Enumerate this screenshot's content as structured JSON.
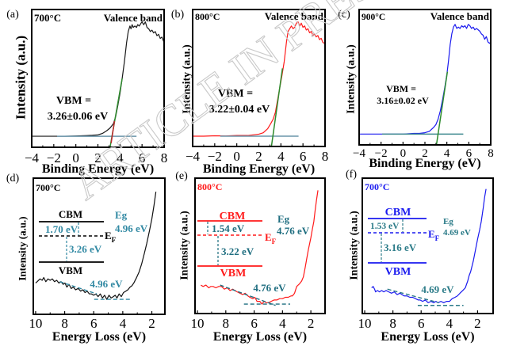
{
  "figure": {
    "watermark": "ARTICLE IN PRESS"
  },
  "chart_data": [
    {
      "panel_label": "(a)",
      "type": "line",
      "sample_label": "700°C",
      "sample_color": "#000000",
      "title": "Valence band",
      "xlabel": "Binding Energy (eV)",
      "ylabel": "Intensity (a.u.)",
      "xlim": [
        -4,
        8
      ],
      "ylim": [
        0,
        1
      ],
      "xticks": [
        -4,
        -2,
        0,
        2,
        4,
        6,
        8
      ],
      "xtick_labels": [
        "−4",
        "−2",
        "0",
        "2",
        "4",
        "6",
        "8"
      ],
      "series": [
        {
          "name": "Valence band spectrum 700°C",
          "color": "#1a1a1a",
          "x": [
            -4,
            -3,
            -2,
            -1,
            0,
            1,
            1.5,
            2,
            2.4,
            2.8,
            3.1,
            3.4,
            3.6,
            3.8,
            4.0,
            4.2,
            4.4,
            4.6,
            4.75,
            4.9,
            5.0,
            5.1,
            5.2,
            5.35,
            5.5,
            5.6,
            5.75,
            5.9,
            6.0,
            6.15,
            6.3,
            6.45,
            6.6,
            6.75,
            6.9,
            7.05,
            7.2,
            7.35,
            7.5,
            7.65,
            7.8,
            8.0
          ],
          "y": [
            0.08,
            0.08,
            0.08,
            0.08,
            0.082,
            0.085,
            0.087,
            0.09,
            0.1,
            0.12,
            0.14,
            0.17,
            0.22,
            0.3,
            0.39,
            0.5,
            0.62,
            0.76,
            0.84,
            0.88,
            0.86,
            0.89,
            0.87,
            0.88,
            0.87,
            0.89,
            0.88,
            0.9,
            0.91,
            0.89,
            0.91,
            0.87,
            0.86,
            0.84,
            0.85,
            0.83,
            0.84,
            0.81,
            0.82,
            0.79,
            0.8,
            0.76
          ]
        }
      ],
      "fit_lines": [
        {
          "name": "background",
          "color": "#6a95aa",
          "x": [
            -1.7,
            5.5
          ],
          "y": [
            0.08,
            0.08
          ]
        },
        {
          "name": "leading-edge",
          "color": "#2e8b2e",
          "x": [
            3.1,
            4.2
          ],
          "y": [
            0.0,
            0.5
          ]
        },
        {
          "name": "edge-foot",
          "color": "#c0282c",
          "x": [
            3.2,
            3.5
          ],
          "y": [
            0.03,
            0.19
          ]
        }
      ],
      "annotation": [
        "VBM =",
        "3.26±0.06 eV"
      ],
      "vbm_eV": 3.26,
      "vbm_error_eV": 0.06
    },
    {
      "panel_label": "(b)",
      "type": "line",
      "sample_label": "800°C",
      "sample_color": "#000000",
      "title": "Valence band",
      "xlabel": "Binding Energy (eV)",
      "ylabel": "Intensity (a.u.)",
      "xlim": [
        -4,
        8
      ],
      "ylim": [
        0,
        1
      ],
      "xticks": [
        -4,
        -2,
        0,
        2,
        4,
        6,
        8
      ],
      "xtick_labels": [
        "−4",
        "−2",
        "0",
        "2",
        "4",
        "6",
        "8"
      ],
      "series": [
        {
          "name": "Valence band spectrum 800°C",
          "color": "#ff1a1a",
          "x": [
            -4,
            -3,
            -2,
            -1,
            0,
            1,
            1.5,
            2,
            2.4,
            2.8,
            3.1,
            3.3,
            3.5,
            3.7,
            3.9,
            4.1,
            4.3,
            4.5,
            4.65,
            4.8,
            4.95,
            5.1,
            5.25,
            5.4,
            5.55,
            5.7,
            5.85,
            6.0,
            6.15,
            6.3,
            6.45,
            6.6,
            6.75,
            6.9,
            7.05,
            7.2,
            7.35,
            7.5,
            7.65,
            7.8,
            8.0
          ],
          "y": [
            0.075,
            0.075,
            0.078,
            0.077,
            0.08,
            0.08,
            0.085,
            0.09,
            0.1,
            0.13,
            0.17,
            0.2,
            0.25,
            0.34,
            0.43,
            0.52,
            0.62,
            0.76,
            0.84,
            0.86,
            0.88,
            0.86,
            0.87,
            0.9,
            0.91,
            0.88,
            0.9,
            0.87,
            0.88,
            0.85,
            0.86,
            0.83,
            0.84,
            0.81,
            0.82,
            0.8,
            0.81,
            0.78,
            0.79,
            0.76,
            0.75
          ]
        }
      ],
      "fit_lines": [
        {
          "name": "background",
          "color": "#6a95aa",
          "x": [
            -1.5,
            5.6
          ],
          "y": [
            0.075,
            0.075
          ]
        },
        {
          "name": "leading-edge",
          "color": "#2e8b2e",
          "x": [
            3.14,
            4.14
          ],
          "y": [
            0.0,
            0.57
          ]
        }
      ],
      "annotation": [
        "VBM =",
        "3.22±0.04 eV"
      ],
      "vbm_eV": 3.22,
      "vbm_error_eV": 0.04
    },
    {
      "panel_label": "(c)",
      "type": "line",
      "sample_label": "900°C",
      "sample_color": "#000000",
      "title": "Valence band",
      "xlabel": "Binding Energy (eV)",
      "ylabel": "Intensity (a.u.)",
      "xlim": [
        -4,
        8
      ],
      "ylim": [
        0,
        1
      ],
      "xticks": [
        -4,
        -2,
        0,
        2,
        4,
        6,
        8
      ],
      "xtick_labels": [
        "−4",
        "−2",
        "0",
        "2",
        "4",
        "6",
        "8"
      ],
      "series": [
        {
          "name": "Valence band spectrum 900°C",
          "color": "#1a1aef",
          "x": [
            -4,
            -3,
            -2,
            -1,
            0,
            1,
            1.5,
            2,
            2.4,
            2.8,
            3.0,
            3.2,
            3.4,
            3.6,
            3.8,
            4.0,
            4.15,
            4.3,
            4.45,
            4.6,
            4.75,
            4.9,
            5.05,
            5.2,
            5.35,
            5.5,
            5.65,
            5.8,
            5.95,
            6.1,
            6.25,
            6.4,
            6.55,
            6.7,
            6.85,
            7.0,
            7.15,
            7.3,
            7.45,
            7.6,
            7.75,
            7.9,
            8.0
          ],
          "y": [
            0.08,
            0.08,
            0.08,
            0.08,
            0.08,
            0.085,
            0.085,
            0.09,
            0.1,
            0.13,
            0.15,
            0.19,
            0.25,
            0.33,
            0.42,
            0.52,
            0.62,
            0.74,
            0.82,
            0.87,
            0.89,
            0.86,
            0.87,
            0.86,
            0.88,
            0.87,
            0.88,
            0.86,
            0.89,
            0.88,
            0.86,
            0.87,
            0.85,
            0.86,
            0.85,
            0.84,
            0.82,
            0.81,
            0.78,
            0.8,
            0.76,
            0.75,
            0.76
          ]
        }
      ],
      "fit_lines": [
        {
          "name": "background",
          "color": "#3f8a8f",
          "x": [
            -1.9,
            5.5
          ],
          "y": [
            0.08,
            0.08
          ]
        },
        {
          "name": "leading-edge",
          "color": "#2e8b2e",
          "x": [
            3.05,
            4.05
          ],
          "y": [
            0.0,
            0.54
          ]
        }
      ],
      "annotation": [
        "VBM =",
        "3.16±0.02 eV"
      ],
      "vbm_eV": 3.16,
      "vbm_error_eV": 0.02
    },
    {
      "panel_label": "(d)",
      "type": "line",
      "sample_label": "700°C",
      "sample_color": "#000000",
      "xlabel": "Energy Loss (eV)",
      "ylabel": "Intensity (a.u.)",
      "xlim": [
        10.16,
        1.1
      ],
      "ylim": [
        0,
        1
      ],
      "xticks": [
        10,
        8,
        6,
        4,
        2
      ],
      "xtick_labels": [
        "10",
        "8",
        "6",
        "4",
        "2"
      ],
      "series": [
        {
          "name": "REELS spectrum 700°C",
          "color": "#111111",
          "x": [
            10.0,
            9.89,
            9.7,
            9.55,
            9.44,
            9.3,
            9.15,
            9.0,
            8.85,
            8.7,
            8.55,
            8.4,
            8.25,
            8.1,
            7.98,
            7.85,
            7.7,
            7.55,
            7.4,
            7.25,
            7.07,
            6.9,
            6.75,
            6.6,
            6.45,
            6.3,
            6.16,
            6.0,
            5.85,
            5.7,
            5.55,
            5.4,
            5.25,
            5.1,
            4.95,
            4.8,
            4.65,
            4.52,
            4.4,
            4.25,
            4.1,
            3.95,
            3.79,
            3.65,
            3.5,
            3.37,
            3.24,
            3.05,
            2.88,
            2.7,
            2.51,
            2.35,
            2.15,
            2.0,
            1.85,
            1.72
          ],
          "y": [
            0.23,
            0.24,
            0.26,
            0.25,
            0.27,
            0.24,
            0.26,
            0.25,
            0.26,
            0.24,
            0.25,
            0.23,
            0.24,
            0.22,
            0.23,
            0.2,
            0.22,
            0.19,
            0.2,
            0.18,
            0.19,
            0.17,
            0.18,
            0.16,
            0.17,
            0.15,
            0.15,
            0.14,
            0.15,
            0.13,
            0.15,
            0.12,
            0.14,
            0.11,
            0.14,
            0.12,
            0.13,
            0.14,
            0.12,
            0.15,
            0.13,
            0.16,
            0.17,
            0.18,
            0.2,
            0.21,
            0.23,
            0.27,
            0.31,
            0.37,
            0.45,
            0.52,
            0.62,
            0.7,
            0.8,
            0.9
          ]
        }
      ],
      "fit_lines": [
        {
          "name": "onset-fit",
          "color": "#3189a3",
          "x": [
            8.34,
            5.79
          ],
          "y": [
            0.24,
            0.15
          ]
        },
        {
          "name": "background-fit",
          "color": "#3189a3",
          "x": [
            5.97,
            3.51
          ],
          "y": [
            0.11,
            0.11
          ]
        }
      ],
      "annotation": [
        "4.96 eV"
      ],
      "bandgap_eV": 4.96,
      "band_diagram": {
        "level_color": "#000000",
        "text_color": "#3189a3",
        "cbm_label": "CBM",
        "vbm_label": "VBM",
        "fermi_main": "E",
        "fermi_sub": "F",
        "cbm_to_ef": "1.70 eV",
        "ef_to_vbm": "3.26 eV",
        "eg_label": "Eg",
        "eg_value": "4.96 eV"
      }
    },
    {
      "panel_label": "(e)",
      "type": "line",
      "sample_label": "800°C",
      "sample_color": "#ff1a1a",
      "xlabel": "Energy Loss (eV)",
      "ylabel": "Intensity (a.u.)",
      "xlim": [
        10.17,
        1.0
      ],
      "ylim": [
        0,
        1
      ],
      "xticks": [
        10,
        8,
        6,
        4,
        2
      ],
      "xtick_labels": [
        "10",
        "8",
        "6",
        "4",
        "2"
      ],
      "series": [
        {
          "name": "REELS spectrum 800°C",
          "color": "#ff1a1a",
          "x": [
            9.76,
            9.6,
            9.4,
            9.2,
            9.05,
            8.9,
            8.7,
            8.5,
            8.3,
            8.1,
            7.9,
            7.7,
            7.5,
            7.37,
            7.2,
            7.0,
            6.8,
            6.64,
            6.44,
            6.3,
            6.1,
            5.95,
            5.8,
            5.6,
            5.45,
            5.3,
            5.15,
            4.97,
            4.8,
            4.6,
            4.4,
            4.2,
            4.0,
            3.8,
            3.6,
            3.4,
            3.3,
            3.15,
            3.0,
            2.8,
            2.65,
            2.53,
            2.4,
            2.3,
            2.18,
            2.0,
            1.9,
            1.79,
            1.7,
            1.6,
            1.5
          ],
          "y": [
            0.21,
            0.2,
            0.21,
            0.19,
            0.2,
            0.2,
            0.19,
            0.2,
            0.2,
            0.18,
            0.19,
            0.17,
            0.18,
            0.17,
            0.16,
            0.15,
            0.14,
            0.15,
            0.13,
            0.12,
            0.11,
            0.12,
            0.09,
            0.09,
            0.07,
            0.09,
            0.08,
            0.08,
            0.09,
            0.1,
            0.1,
            0.11,
            0.11,
            0.12,
            0.12,
            0.13,
            0.13,
            0.15,
            0.2,
            0.22,
            0.24,
            0.27,
            0.34,
            0.4,
            0.47,
            0.56,
            0.62,
            0.68,
            0.76,
            0.84,
            0.91
          ]
        }
      ],
      "fit_lines": [
        {
          "name": "onset-fit",
          "color": "#1f6e80",
          "x": [
            8.4,
            4.49
          ],
          "y": [
            0.21,
            0.06
          ]
        },
        {
          "name": "background-fit",
          "color": "#1f6e80",
          "x": [
            6.72,
            3.46
          ],
          "y": [
            0.07,
            0.07
          ]
        }
      ],
      "annotation": [
        "4.76 eV"
      ],
      "bandgap_eV": 4.76,
      "band_diagram": {
        "level_color": "#ff1a1a",
        "text_color": "#1f6e80",
        "cbm_label": "CBM",
        "vbm_label": "VBM",
        "fermi_main": "E",
        "fermi_sub": "F",
        "cbm_to_ef": "1.54 eV",
        "ef_to_vbm": "3.22 eV",
        "eg_label": "Eg",
        "eg_value": "4.76 eV"
      }
    },
    {
      "panel_label": "(f)",
      "type": "line",
      "sample_label": "700°C",
      "sample_color": "#1a1aef",
      "xlabel": "Energy Loss (eV)",
      "ylabel": "Intensity (a.u.)",
      "xlim": [
        10.17,
        0.9
      ],
      "ylim": [
        0,
        1
      ],
      "xticks": [
        10,
        8,
        6,
        4,
        2
      ],
      "xtick_labels": [
        "10",
        "8",
        "6",
        "4",
        "2"
      ],
      "series": [
        {
          "name": "REELS spectrum",
          "color": "#1a1aef",
          "x": [
            9.51,
            9.4,
            9.3,
            9.23,
            9.1,
            8.95,
            8.8,
            8.65,
            8.48,
            8.3,
            8.1,
            7.9,
            7.7,
            7.5,
            7.36,
            7.2,
            7.0,
            6.8,
            6.6,
            6.4,
            6.2,
            6.07,
            5.9,
            5.7,
            5.5,
            5.3,
            5.11,
            4.95,
            4.8,
            4.6,
            4.4,
            4.2,
            3.99,
            3.8,
            3.6,
            3.43,
            3.25,
            3.05,
            2.87,
            2.7,
            2.6,
            2.49,
            2.3,
            2.13,
            2.0,
            1.85,
            1.74,
            1.6,
            1.5,
            1.4
          ],
          "y": [
            0.19,
            0.2,
            0.18,
            0.16,
            0.17,
            0.16,
            0.17,
            0.16,
            0.17,
            0.16,
            0.15,
            0.16,
            0.14,
            0.15,
            0.14,
            0.13,
            0.13,
            0.12,
            0.12,
            0.11,
            0.1,
            0.1,
            0.09,
            0.1,
            0.08,
            0.09,
            0.08,
            0.09,
            0.08,
            0.09,
            0.08,
            0.09,
            0.09,
            0.11,
            0.12,
            0.13,
            0.15,
            0.17,
            0.19,
            0.24,
            0.28,
            0.31,
            0.39,
            0.48,
            0.55,
            0.62,
            0.68,
            0.78,
            0.86,
            0.92
          ]
        }
      ],
      "fit_lines": [
        {
          "name": "onset-fit",
          "color": "#2b7b88",
          "x": [
            8.39,
            4.74
          ],
          "y": [
            0.18,
            0.08
          ]
        },
        {
          "name": "background-fit",
          "color": "#2b7b88",
          "x": [
            6.24,
            3.0
          ],
          "y": [
            0.06,
            0.06
          ]
        }
      ],
      "annotation": [
        "4.69 eV"
      ],
      "bandgap_eV": 4.69,
      "band_diagram": {
        "level_color": "#1a1aef",
        "text_color": "#2b7b88",
        "cbm_label": "CBM",
        "vbm_label": "VBM",
        "fermi_main": "E",
        "fermi_sub": "F",
        "cbm_to_ef": "1.53 eV",
        "ef_to_vbm": "3.16 eV",
        "eg_label": "Eg",
        "eg_value": "4.69 eV"
      }
    }
  ]
}
